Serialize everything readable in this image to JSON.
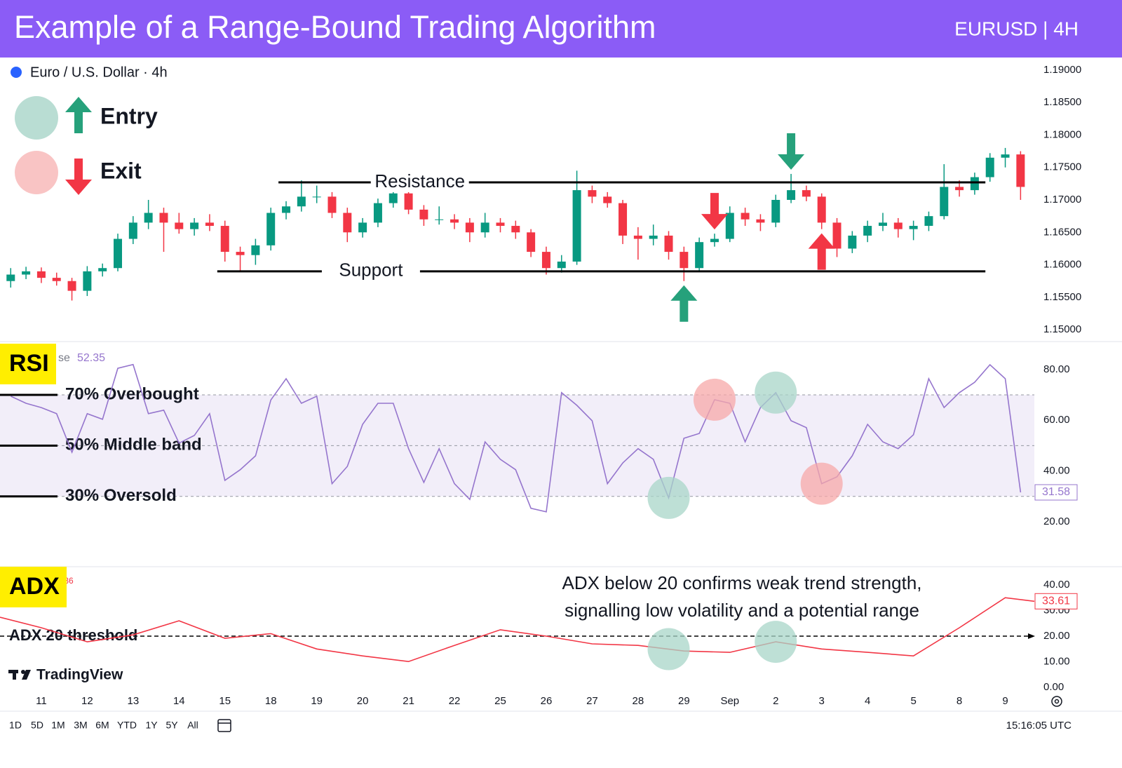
{
  "header": {
    "title": "Example of a Range-Bound Trading Algorithm",
    "symbol": "EURUSD | 4H"
  },
  "branding": "TradingView",
  "toolbar": {
    "ranges": [
      "1D",
      "5D",
      "1M",
      "3M",
      "6M",
      "YTD",
      "1Y",
      "5Y",
      "All"
    ],
    "time": "15:16:05 UTC"
  },
  "chart_data": [
    {
      "type": "candlestick",
      "title": "Euro / U.S. Dollar · 4h",
      "legend": [
        {
          "name": "Entry",
          "color": "#26a17b",
          "circle": "#b9ddd3",
          "direction": "up"
        },
        {
          "name": "Exit",
          "color": "#f23645",
          "circle": "#f9c4c4",
          "direction": "down"
        }
      ],
      "up_color": "#089981",
      "down_color": "#f23645",
      "candles": [
        [
          1.1575,
          1.1595,
          1.1565,
          1.1585
        ],
        [
          1.1585,
          1.1597,
          1.1578,
          1.159
        ],
        [
          1.159,
          1.1596,
          1.1572,
          1.158
        ],
        [
          1.158,
          1.1588,
          1.1568,
          1.1575
        ],
        [
          1.1575,
          1.158,
          1.1545,
          1.156
        ],
        [
          1.156,
          1.1598,
          1.1552,
          1.159
        ],
        [
          1.159,
          1.1602,
          1.1582,
          1.1595
        ],
        [
          1.1595,
          1.1648,
          1.159,
          1.164
        ],
        [
          1.164,
          1.1675,
          1.1632,
          1.1665
        ],
        [
          1.1665,
          1.17,
          1.1655,
          1.168
        ],
        [
          1.168,
          1.1688,
          1.162,
          1.1665
        ],
        [
          1.1665,
          1.168,
          1.1648,
          1.1655
        ],
        [
          1.1655,
          1.1672,
          1.1645,
          1.1665
        ],
        [
          1.1665,
          1.1678,
          1.1652,
          1.166
        ],
        [
          1.166,
          1.1668,
          1.1605,
          1.162
        ],
        [
          1.162,
          1.1628,
          1.159,
          1.1615
        ],
        [
          1.1615,
          1.164,
          1.16,
          1.163
        ],
        [
          1.163,
          1.1688,
          1.1622,
          1.168
        ],
        [
          1.168,
          1.1698,
          1.167,
          1.169
        ],
        [
          1.169,
          1.173,
          1.1682,
          1.1705
        ],
        [
          1.1705,
          1.1722,
          1.1695,
          1.1705
        ],
        [
          1.1705,
          1.1712,
          1.1672,
          1.168
        ],
        [
          1.168,
          1.1688,
          1.1635,
          1.165
        ],
        [
          1.165,
          1.1672,
          1.1642,
          1.1665
        ],
        [
          1.1665,
          1.1702,
          1.1658,
          1.1695
        ],
        [
          1.1695,
          1.1718,
          1.1688,
          1.171
        ],
        [
          1.171,
          1.1715,
          1.1678,
          1.1685
        ],
        [
          1.1685,
          1.1692,
          1.166,
          1.167
        ],
        [
          1.167,
          1.169,
          1.1662,
          1.167
        ],
        [
          1.167,
          1.1678,
          1.1655,
          1.1665
        ],
        [
          1.1665,
          1.1672,
          1.1635,
          1.165
        ],
        [
          1.165,
          1.168,
          1.1642,
          1.1665
        ],
        [
          1.1665,
          1.1672,
          1.165,
          1.166
        ],
        [
          1.166,
          1.1668,
          1.164,
          1.165
        ],
        [
          1.165,
          1.1655,
          1.1612,
          1.162
        ],
        [
          1.162,
          1.1628,
          1.1585,
          1.1595
        ],
        [
          1.1595,
          1.1615,
          1.1588,
          1.1605
        ],
        [
          1.1605,
          1.1745,
          1.16,
          1.1715
        ],
        [
          1.1715,
          1.1722,
          1.1695,
          1.1705
        ],
        [
          1.1705,
          1.1712,
          1.1688,
          1.1695
        ],
        [
          1.1695,
          1.17,
          1.1632,
          1.1645
        ],
        [
          1.1645,
          1.1658,
          1.1608,
          1.164
        ],
        [
          1.164,
          1.1662,
          1.163,
          1.1645
        ],
        [
          1.1645,
          1.1652,
          1.1608,
          1.162
        ],
        [
          1.162,
          1.1628,
          1.1575,
          1.1595
        ],
        [
          1.1595,
          1.1642,
          1.159,
          1.1635
        ],
        [
          1.1635,
          1.1648,
          1.1628,
          1.164
        ],
        [
          1.164,
          1.169,
          1.1635,
          1.168
        ],
        [
          1.168,
          1.1688,
          1.166,
          1.167
        ],
        [
          1.167,
          1.1678,
          1.1652,
          1.1665
        ],
        [
          1.1665,
          1.1708,
          1.1658,
          1.17
        ],
        [
          1.17,
          1.174,
          1.1695,
          1.1715
        ],
        [
          1.1715,
          1.1722,
          1.1698,
          1.1705
        ],
        [
          1.1705,
          1.171,
          1.1655,
          1.1665
        ],
        [
          1.1665,
          1.1672,
          1.1612,
          1.1625
        ],
        [
          1.1625,
          1.1652,
          1.1618,
          1.1645
        ],
        [
          1.1645,
          1.1668,
          1.1635,
          1.166
        ],
        [
          1.166,
          1.168,
          1.1652,
          1.1665
        ],
        [
          1.1665,
          1.1672,
          1.1642,
          1.1655
        ],
        [
          1.1655,
          1.1668,
          1.1638,
          1.166
        ],
        [
          1.166,
          1.1682,
          1.1652,
          1.1675
        ],
        [
          1.1675,
          1.1755,
          1.167,
          1.172
        ],
        [
          1.172,
          1.173,
          1.1705,
          1.1715
        ],
        [
          1.1715,
          1.1742,
          1.1708,
          1.1735
        ],
        [
          1.1735,
          1.1772,
          1.1728,
          1.1765
        ],
        [
          1.1765,
          1.178,
          1.175,
          1.177
        ],
        [
          1.177,
          1.1775,
          1.17,
          1.172
        ]
      ],
      "xlim": [
        -0.7,
        66.9
      ],
      "xticks": [
        {
          "value": 2,
          "label": "11"
        },
        {
          "value": 5,
          "label": "12"
        },
        {
          "value": 8,
          "label": "13"
        },
        {
          "value": 11,
          "label": "14"
        },
        {
          "value": 14,
          "label": "15"
        },
        {
          "value": 17,
          "label": "18"
        },
        {
          "value": 20,
          "label": "19"
        },
        {
          "value": 23,
          "label": "20"
        },
        {
          "value": 26,
          "label": "21"
        },
        {
          "value": 29,
          "label": "22"
        },
        {
          "value": 32,
          "label": "25"
        },
        {
          "value": 35,
          "label": "26"
        },
        {
          "value": 38,
          "label": "27"
        },
        {
          "value": 41,
          "label": "28"
        },
        {
          "value": 44,
          "label": "29"
        },
        {
          "value": 47,
          "label": "Sep"
        },
        {
          "value": 50,
          "label": "2"
        },
        {
          "value": 53,
          "label": "3"
        },
        {
          "value": 56,
          "label": "4"
        },
        {
          "value": 59,
          "label": "5"
        },
        {
          "value": 62,
          "label": "8"
        },
        {
          "value": 65,
          "label": "9"
        }
      ],
      "ylim": [
        1.1484,
        1.1916
      ],
      "yticks": [
        {
          "value": 1.15,
          "label": "1.15000"
        },
        {
          "value": 1.155,
          "label": "1.15500"
        },
        {
          "value": 1.16,
          "label": "1.16000"
        },
        {
          "value": 1.165,
          "label": "1.16500"
        },
        {
          "value": 1.17,
          "label": "1.17000"
        },
        {
          "value": 1.175,
          "label": "1.17500"
        },
        {
          "value": 1.18,
          "label": "1.18000"
        },
        {
          "value": 1.185,
          "label": "1.18500"
        },
        {
          "value": 1.19,
          "label": "1.19000"
        }
      ],
      "levels": [
        {
          "name": "Resistance",
          "value": 1.1727,
          "from": 17.5,
          "to": 63.7
        },
        {
          "name": "Support",
          "value": 1.159,
          "from": 13.5,
          "to": 63.7
        }
      ],
      "signals": [
        {
          "candle": 44,
          "direction": "up",
          "color": "#26a17b"
        },
        {
          "candle": 46,
          "direction": "down",
          "color": "#f23645"
        },
        {
          "candle": 51,
          "direction": "down",
          "color": "#26a17b"
        },
        {
          "candle": 53,
          "direction": "up",
          "color": "#f23645"
        }
      ]
    },
    {
      "type": "line",
      "title": "RSI",
      "status_prefix": "se",
      "status_value": 52.35,
      "color": "#9575cd",
      "values": [
        69.5,
        66.7,
        65.0,
        62.6,
        47.4,
        62.6,
        60.4,
        80.5,
        82.0,
        62.6,
        64.0,
        51.0,
        54.0,
        62.6,
        36.3,
        40.5,
        46.0,
        68.0,
        76.4,
        66.7,
        69.5,
        35.0,
        41.8,
        58.4,
        66.7,
        66.7,
        48.8,
        35.5,
        48.8,
        35.0,
        28.8,
        51.5,
        44.6,
        40.5,
        25.3,
        23.9,
        70.9,
        65.9,
        59.8,
        35.0,
        43.2,
        48.8,
        44.6,
        29.4,
        52.9,
        54.8,
        68.1,
        66.7,
        51.5,
        65.0,
        70.9,
        59.8,
        57.1,
        35.0,
        37.7,
        46.0,
        58.4,
        51.5,
        48.8,
        54.3,
        76.4,
        65.0,
        70.9,
        75.0,
        81.9,
        76.4,
        31.58
      ],
      "ylim": [
        3.1,
        90.2
      ],
      "yticks": [
        {
          "value": 20,
          "label": "20.00"
        },
        {
          "value": 40,
          "label": "40.00"
        },
        {
          "value": 60,
          "label": "60.00"
        },
        {
          "value": 80,
          "label": "80.00"
        }
      ],
      "bands": [
        {
          "value": 70,
          "label": "70% Overbought"
        },
        {
          "value": 50,
          "label": "50% Middle band"
        },
        {
          "value": 30,
          "label": "30% Oversold"
        }
      ],
      "highlights": [
        {
          "candle": 43,
          "color": "#a8d5c8"
        },
        {
          "candle": 46,
          "color": "#f7a8a8"
        },
        {
          "candle": 50,
          "color": "#a8d5c8"
        },
        {
          "candle": 53,
          "color": "#f7a8a8"
        }
      ]
    },
    {
      "type": "line",
      "title": "ADX",
      "status_value": ".36",
      "color": "#f23645",
      "x": [
        -0.7,
        2,
        5,
        8,
        11,
        14,
        17,
        20,
        23,
        26,
        29,
        32,
        35,
        38,
        41,
        44,
        47,
        50,
        53,
        56,
        59,
        62,
        65,
        66.9
      ],
      "values": [
        27.4,
        23.3,
        17.8,
        20.5,
        26,
        19.2,
        21,
        15,
        12.3,
        10.1,
        16.4,
        22.5,
        20,
        17,
        16.4,
        14.2,
        13.7,
        17.8,
        15,
        13.7,
        12.3,
        23.3,
        35,
        33.61
      ],
      "ylim": [
        -2.7,
        46.0
      ],
      "yticks": [
        {
          "value": 0,
          "label": "0.00"
        },
        {
          "value": 10,
          "label": "10.00"
        },
        {
          "value": 20,
          "label": "20.00"
        },
        {
          "value": 30,
          "label": "30.00"
        },
        {
          "value": 40,
          "label": "40.00"
        }
      ],
      "threshold": {
        "value": 20,
        "label": "ADX 20 threshold"
      },
      "annotation": [
        "ADX below 20 confirms weak trend strength,",
        "signalling low volatility and a potential range"
      ],
      "highlights": [
        {
          "x": 43,
          "color": "#a8d5c8"
        },
        {
          "x": 50,
          "color": "#a8d5c8"
        }
      ]
    }
  ]
}
